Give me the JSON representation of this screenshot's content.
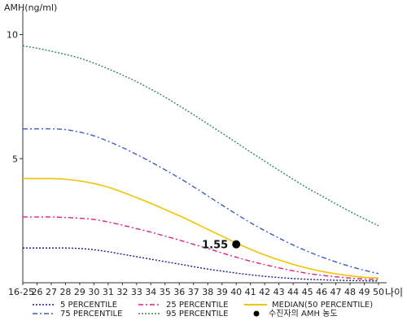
{
  "chart_data": {
    "type": "line",
    "ylabel": "AMH(ng/ml)",
    "xlabel": "나이",
    "ylim": [
      0,
      11
    ],
    "y_ticks": [
      5,
      10
    ],
    "x_tick_labels": [
      "16-25",
      "26",
      "27",
      "28",
      "29",
      "30",
      "31",
      "32",
      "33",
      "34",
      "35",
      "36",
      "37",
      "38",
      "39",
      "40",
      "41",
      "42",
      "43",
      "44",
      "45",
      "46",
      "47",
      "48",
      "49",
      "50"
    ],
    "x": [
      25,
      26,
      27,
      28,
      29,
      30,
      31,
      32,
      33,
      34,
      35,
      36,
      37,
      38,
      39,
      40,
      41,
      42,
      43,
      44,
      45,
      46,
      47,
      48,
      49,
      50
    ],
    "series": [
      {
        "name": "5 PERCENTILE",
        "color": "#1a1a8c",
        "dash": "2,2",
        "values": [
          1.4,
          1.4,
          1.4,
          1.4,
          1.38,
          1.33,
          1.25,
          1.15,
          1.05,
          0.95,
          0.85,
          0.75,
          0.65,
          0.55,
          0.47,
          0.39,
          0.32,
          0.26,
          0.21,
          0.17,
          0.14,
          0.12,
          0.1,
          0.09,
          0.08,
          0.07
        ]
      },
      {
        "name": "25 PERCENTILE",
        "color": "#e0208a",
        "dash": "6,3,2,3",
        "values": [
          2.65,
          2.65,
          2.65,
          2.63,
          2.6,
          2.55,
          2.45,
          2.32,
          2.18,
          2.04,
          1.88,
          1.72,
          1.55,
          1.38,
          1.2,
          1.03,
          0.87,
          0.73,
          0.6,
          0.48,
          0.38,
          0.3,
          0.24,
          0.19,
          0.15,
          0.13
        ]
      },
      {
        "name": "MEDIAN(50 PERCENTILE)",
        "color": "#f2c400",
        "dash": "",
        "values": [
          4.2,
          4.2,
          4.2,
          4.17,
          4.1,
          4.0,
          3.85,
          3.65,
          3.43,
          3.2,
          2.95,
          2.7,
          2.43,
          2.15,
          1.88,
          1.6,
          1.35,
          1.12,
          0.92,
          0.74,
          0.59,
          0.46,
          0.36,
          0.28,
          0.22,
          0.19
        ]
      },
      {
        "name": "75 PERCENTILE",
        "color": "#3a5cc8",
        "dash": "6,3,2,3",
        "values": [
          6.2,
          6.2,
          6.2,
          6.17,
          6.07,
          5.92,
          5.7,
          5.45,
          5.17,
          4.87,
          4.55,
          4.22,
          3.87,
          3.5,
          3.13,
          2.77,
          2.42,
          2.1,
          1.8,
          1.52,
          1.27,
          1.04,
          0.84,
          0.66,
          0.5,
          0.37
        ]
      },
      {
        "name": "95 PERCENTILE",
        "color": "#2e8a55",
        "dash": "2,2",
        "values": [
          9.55,
          9.45,
          9.33,
          9.2,
          9.05,
          8.85,
          8.62,
          8.37,
          8.1,
          7.8,
          7.48,
          7.13,
          6.77,
          6.4,
          6.03,
          5.65,
          5.27,
          4.9,
          4.53,
          4.17,
          3.82,
          3.5,
          3.18,
          2.87,
          2.58,
          2.3
        ]
      }
    ],
    "point": {
      "name": "수진자의 AMH 농도",
      "x": 40,
      "y": 1.55,
      "label": "1.55",
      "color": "#000000"
    },
    "legend_position": "bottom",
    "grid": false
  }
}
